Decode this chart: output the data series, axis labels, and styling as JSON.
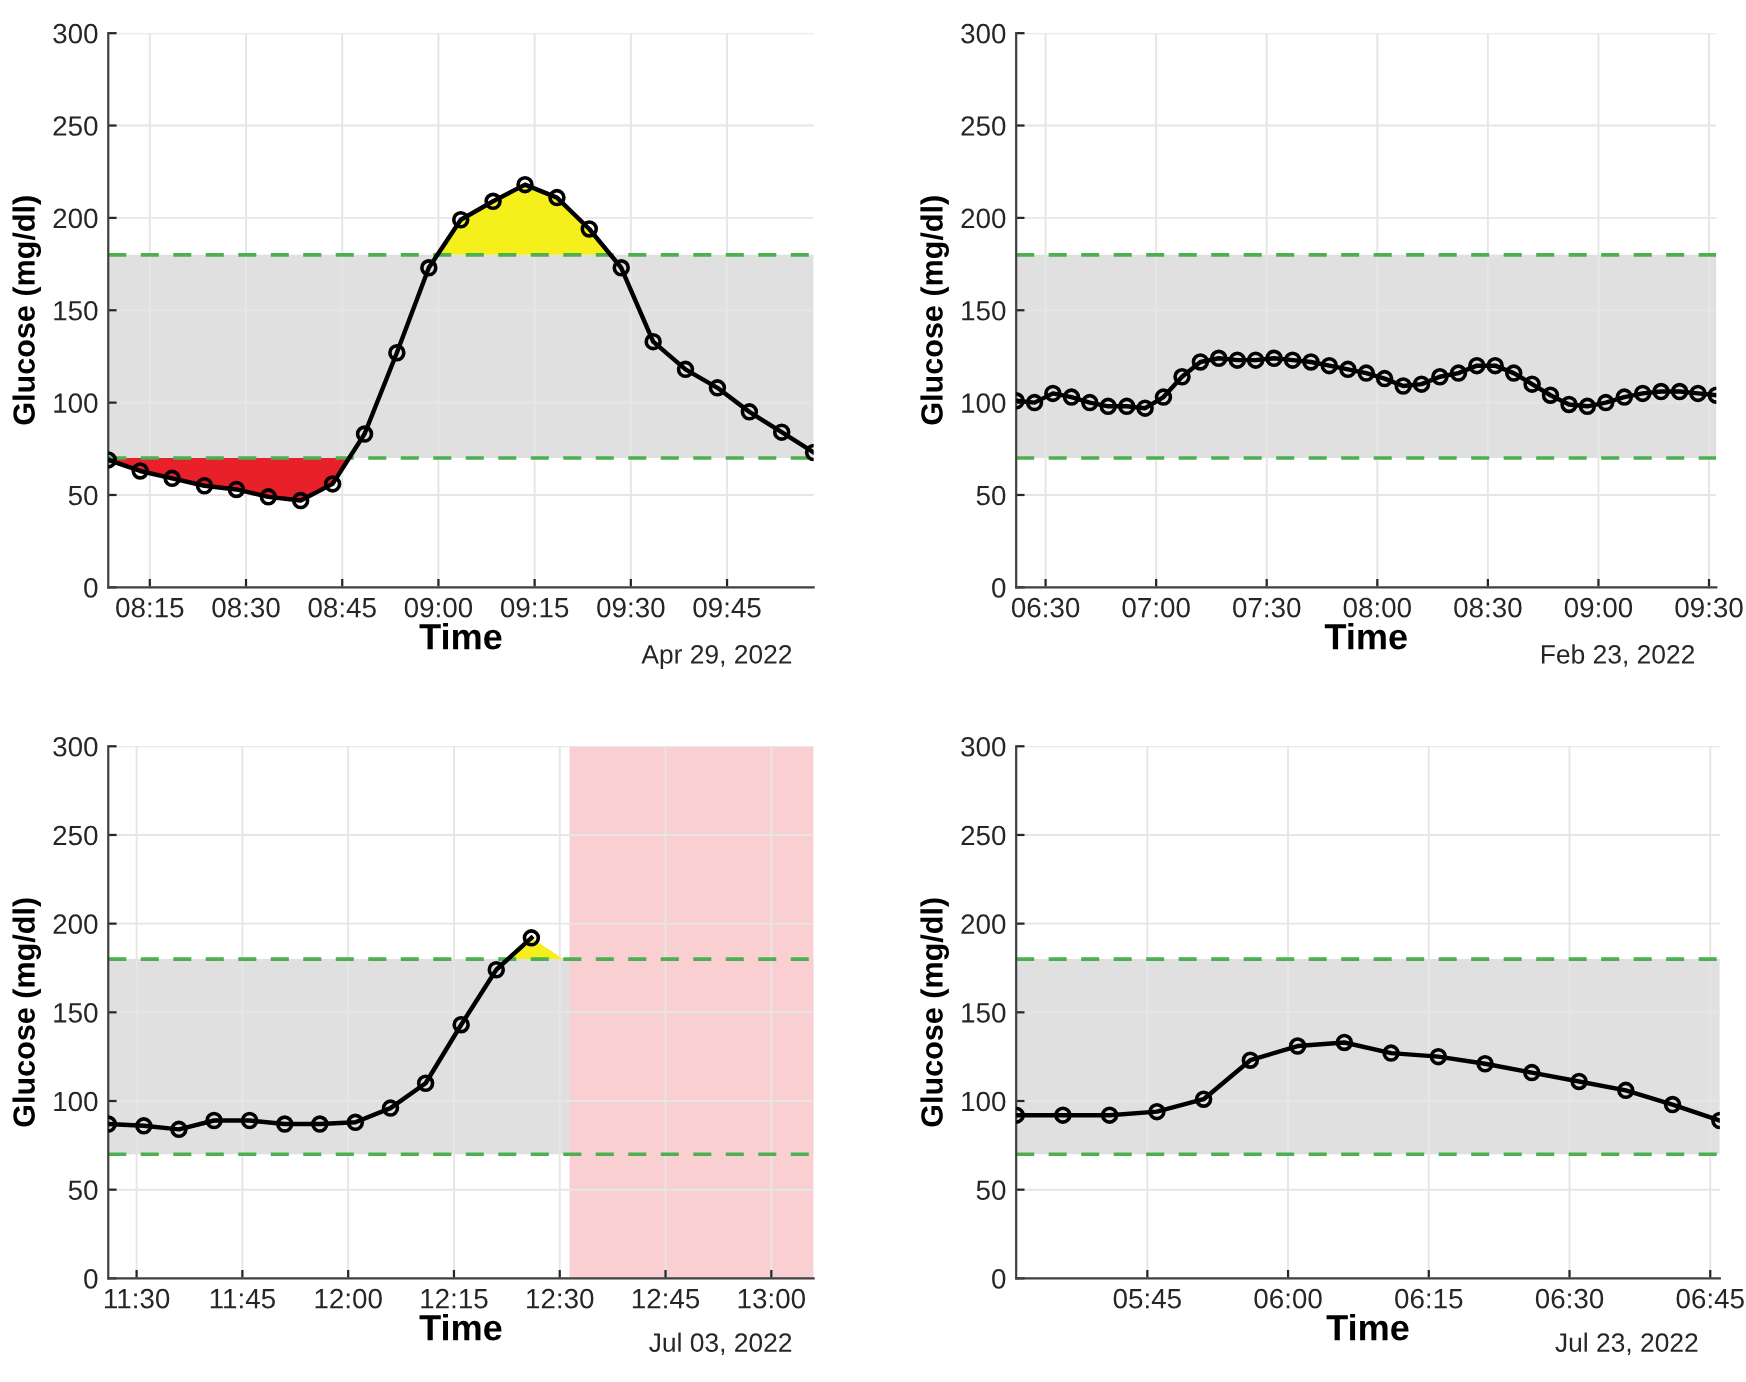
{
  "chart_data": [
    {
      "type": "line",
      "xlabel": "Time",
      "ylabel": "Glucose (mg/dl)",
      "annotations": [
        "Apr 29, 2022"
      ],
      "xlim": [
        8.142,
        9.975
      ],
      "ylim": [
        0,
        300
      ],
      "yticks": [
        0,
        50,
        100,
        150,
        200,
        250,
        300
      ],
      "xticks": [
        {
          "value": 8.25,
          "label": "08:15"
        },
        {
          "value": 8.5,
          "label": "08:30"
        },
        {
          "value": 8.75,
          "label": "08:45"
        },
        {
          "value": 9.0,
          "label": "09:00"
        },
        {
          "value": 9.25,
          "label": "09:15"
        },
        {
          "value": 9.5,
          "label": "09:30"
        },
        {
          "value": 9.75,
          "label": "09:45"
        }
      ],
      "grid": true,
      "marker": "circle",
      "line_style": "solid",
      "bands": [
        {
          "axis": "y",
          "from": 70,
          "to": 180,
          "color": "#e0e0e0"
        }
      ],
      "ref_lines": [
        {
          "axis": "y",
          "value": 70,
          "color": "#4caf50",
          "line_style": "dashed"
        },
        {
          "axis": "y",
          "value": 180,
          "color": "#4caf50",
          "line_style": "dashed"
        }
      ],
      "series": [
        {
          "type": "area",
          "marker": "none",
          "color": "#e8202a",
          "x": [
            8.142,
            8.142,
            8.225,
            8.308,
            8.392,
            8.475,
            8.558,
            8.642,
            8.725,
            8.768
          ],
          "values": [
            70,
            69,
            63,
            59,
            55,
            53,
            49,
            47,
            56,
            70
          ]
        },
        {
          "type": "area",
          "marker": "none",
          "color": "#f5ef1c",
          "x": [
            8.998,
            9.058,
            9.142,
            9.225,
            9.308,
            9.392,
            9.448
          ],
          "values": [
            180,
            199,
            209,
            218,
            211,
            194,
            180
          ]
        },
        {
          "color": "#000000",
          "x": [
            8.142,
            8.225,
            8.308,
            8.392,
            8.475,
            8.558,
            8.642,
            8.725,
            8.808,
            8.892,
            8.975,
            9.058,
            9.142,
            9.225,
            9.308,
            9.392,
            9.475,
            9.558,
            9.642,
            9.725,
            9.808,
            9.892,
            9.975
          ],
          "values": [
            69,
            63,
            59,
            55,
            53,
            49,
            47,
            56,
            83,
            127,
            173,
            199,
            209,
            218,
            211,
            194,
            173,
            133,
            118,
            108,
            95,
            84,
            73
          ]
        }
      ]
    },
    {
      "type": "line",
      "xlabel": "Time",
      "ylabel": "Glucose (mg/dl)",
      "annotations": [
        "Feb 23, 2022"
      ],
      "xlim": [
        6.367,
        9.533
      ],
      "ylim": [
        0,
        300
      ],
      "yticks": [
        0,
        50,
        100,
        150,
        200,
        250,
        300
      ],
      "xticks": [
        {
          "value": 6.5,
          "label": "06:30"
        },
        {
          "value": 7.0,
          "label": "07:00"
        },
        {
          "value": 7.5,
          "label": "07:30"
        },
        {
          "value": 8.0,
          "label": "08:00"
        },
        {
          "value": 8.5,
          "label": "08:30"
        },
        {
          "value": 9.0,
          "label": "09:00"
        },
        {
          "value": 9.5,
          "label": "09:30"
        }
      ],
      "grid": true,
      "marker": "circle",
      "line_style": "solid",
      "bands": [
        {
          "axis": "y",
          "from": 70,
          "to": 180,
          "color": "#e0e0e0"
        }
      ],
      "ref_lines": [
        {
          "axis": "y",
          "value": 70,
          "color": "#4caf50",
          "line_style": "dashed"
        },
        {
          "axis": "y",
          "value": 180,
          "color": "#4caf50",
          "line_style": "dashed"
        }
      ],
      "series": [
        {
          "color": "#000000",
          "x": [
            6.367,
            6.45,
            6.533,
            6.617,
            6.7,
            6.783,
            6.867,
            6.95,
            7.033,
            7.117,
            7.2,
            7.283,
            7.367,
            7.45,
            7.533,
            7.617,
            7.7,
            7.783,
            7.867,
            7.95,
            8.033,
            8.117,
            8.2,
            8.283,
            8.367,
            8.45,
            8.533,
            8.617,
            8.7,
            8.783,
            8.867,
            8.95,
            9.033,
            9.117,
            9.2,
            9.283,
            9.367,
            9.45,
            9.533
          ],
          "values": [
            101,
            100,
            105,
            103,
            100,
            98,
            98,
            97,
            103,
            114,
            122,
            124,
            123,
            123,
            124,
            123,
            122,
            120,
            118,
            116,
            113,
            109,
            110,
            114,
            116,
            120,
            120,
            116,
            110,
            104,
            99,
            98,
            100,
            103,
            105,
            106,
            106,
            105,
            104
          ]
        }
      ]
    },
    {
      "type": "line",
      "xlabel": "Time",
      "ylabel": "Glucose (mg/dl)",
      "annotations": [
        "Jul 03, 2022"
      ],
      "xlim": [
        11.433,
        13.1
      ],
      "ylim": [
        0,
        300
      ],
      "yticks": [
        0,
        50,
        100,
        150,
        200,
        250,
        300
      ],
      "xticks": [
        {
          "value": 11.5,
          "label": "11:30"
        },
        {
          "value": 11.75,
          "label": "11:45"
        },
        {
          "value": 12.0,
          "label": "12:00"
        },
        {
          "value": 12.25,
          "label": "12:15"
        },
        {
          "value": 12.5,
          "label": "12:30"
        },
        {
          "value": 12.75,
          "label": "12:45"
        },
        {
          "value": 13.0,
          "label": "13:00"
        }
      ],
      "grid": true,
      "marker": "circle",
      "line_style": "solid",
      "bands": [
        {
          "axis": "y",
          "from": 70,
          "to": 180,
          "color": "#e0e0e0"
        },
        {
          "axis": "x",
          "from": 12.523,
          "to": 13.1,
          "color": "#f9cfd2"
        }
      ],
      "ref_lines": [
        {
          "axis": "y",
          "value": 70,
          "color": "#4caf50",
          "line_style": "dashed"
        },
        {
          "axis": "y",
          "value": 180,
          "color": "#4caf50",
          "line_style": "dashed"
        }
      ],
      "series": [
        {
          "type": "area",
          "marker": "none",
          "color": "#f5ef1c",
          "x": [
            12.378,
            12.433,
            12.508
          ],
          "values": [
            180,
            192,
            180
          ]
        },
        {
          "color": "#000000",
          "x": [
            11.433,
            11.517,
            11.6,
            11.683,
            11.767,
            11.85,
            11.933,
            12.017,
            12.1,
            12.183,
            12.267,
            12.35,
            12.433
          ],
          "values": [
            87,
            86,
            84,
            89,
            89,
            87,
            87,
            88,
            96,
            110,
            143,
            174,
            192
          ]
        }
      ]
    },
    {
      "type": "line",
      "xlabel": "Time",
      "ylabel": "Glucose (mg/dl)",
      "annotations": [
        "Jul 23, 2022"
      ],
      "xlim": [
        5.517,
        6.767
      ],
      "ylim": [
        0,
        300
      ],
      "yticks": [
        0,
        50,
        100,
        150,
        200,
        250,
        300
      ],
      "xticks": [
        {
          "value": 5.75,
          "label": "05:45"
        },
        {
          "value": 6.0,
          "label": "06:00"
        },
        {
          "value": 6.25,
          "label": "06:15"
        },
        {
          "value": 6.5,
          "label": "06:30"
        },
        {
          "value": 6.75,
          "label": "06:45"
        }
      ],
      "grid": true,
      "marker": "circle",
      "line_style": "solid",
      "bands": [
        {
          "axis": "y",
          "from": 70,
          "to": 180,
          "color": "#e0e0e0"
        }
      ],
      "ref_lines": [
        {
          "axis": "y",
          "value": 70,
          "color": "#4caf50",
          "line_style": "dashed"
        },
        {
          "axis": "y",
          "value": 180,
          "color": "#4caf50",
          "line_style": "dashed"
        }
      ],
      "series": [
        {
          "color": "#000000",
          "x": [
            5.517,
            5.6,
            5.683,
            5.767,
            5.85,
            5.933,
            6.017,
            6.1,
            6.183,
            6.267,
            6.35,
            6.433,
            6.517,
            6.6,
            6.683,
            6.767
          ],
          "values": [
            92,
            92,
            92,
            94,
            101,
            123,
            131,
            133,
            127,
            125,
            121,
            116,
            111,
            106,
            98,
            89
          ]
        }
      ]
    }
  ]
}
